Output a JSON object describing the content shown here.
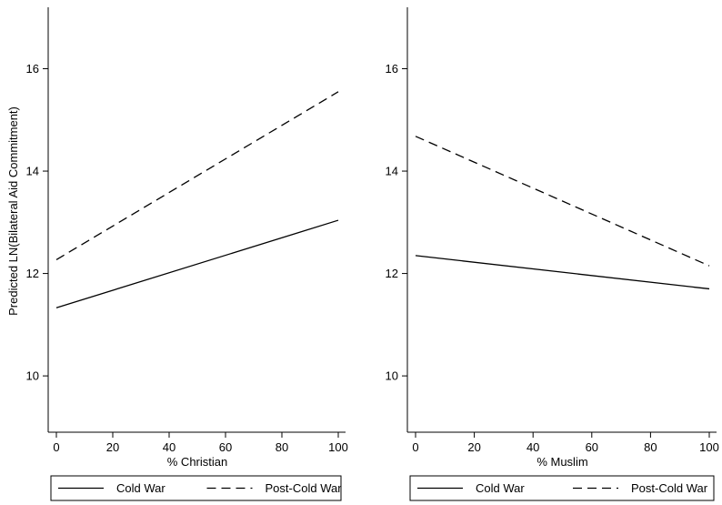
{
  "chart_data": {
    "type": "line",
    "ylabel": "Predicted LN(Bilateral Aid Commitment)",
    "panels": [
      {
        "xlabel": "% Christian",
        "xlim": [
          0,
          100
        ],
        "ylim": [
          8.9,
          17.2
        ],
        "xticks": [
          0,
          20,
          40,
          60,
          80,
          100
        ],
        "yticks": [
          10,
          12,
          14,
          16
        ],
        "series": [
          {
            "name": "Cold War",
            "style": "solid",
            "x": [
              0,
              100
            ],
            "y": [
              11.33,
              13.04
            ]
          },
          {
            "name": "Post-Cold War",
            "style": "dashed",
            "x": [
              0,
              100
            ],
            "y": [
              12.27,
              15.55
            ]
          }
        ]
      },
      {
        "xlabel": "% Muslim",
        "xlim": [
          0,
          100
        ],
        "ylim": [
          8.9,
          17.2
        ],
        "xticks": [
          0,
          20,
          40,
          60,
          80,
          100
        ],
        "yticks": [
          10,
          12,
          14,
          16
        ],
        "series": [
          {
            "name": "Cold War",
            "style": "solid",
            "x": [
              0,
              100
            ],
            "y": [
              12.35,
              11.7
            ]
          },
          {
            "name": "Post-Cold War",
            "style": "dashed",
            "x": [
              0,
              100
            ],
            "y": [
              14.68,
              12.15
            ]
          }
        ]
      }
    ],
    "legend": {
      "placement": "bottom",
      "entries": [
        "Cold War",
        "Post-Cold War"
      ]
    },
    "grid": false
  }
}
